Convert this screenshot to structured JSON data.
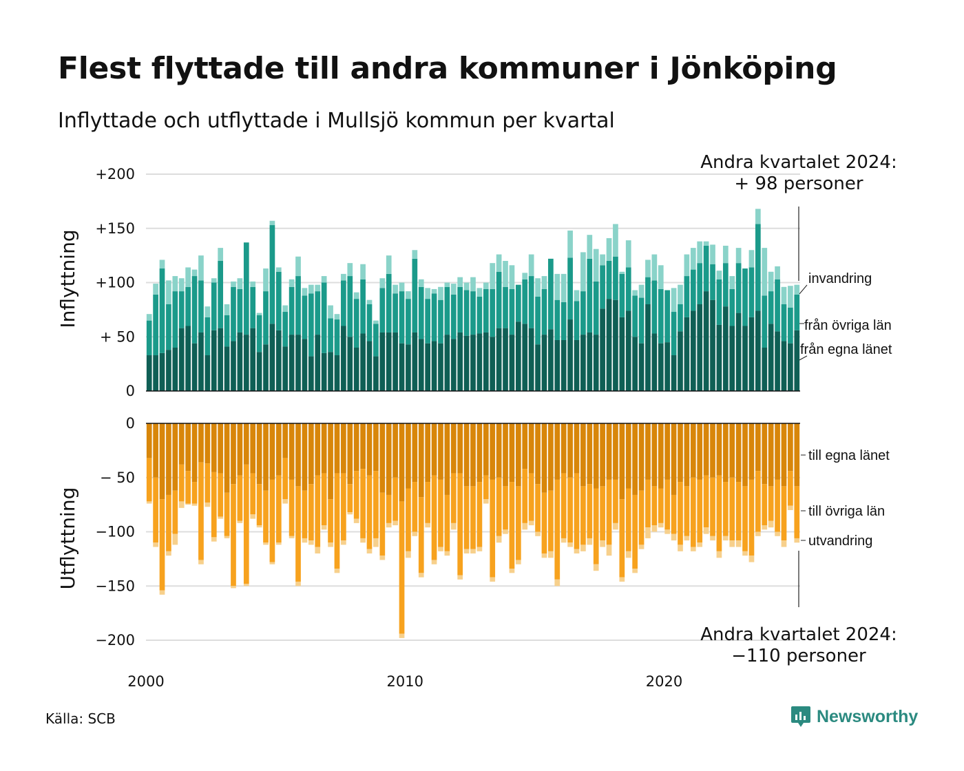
{
  "title": "Flest flyttade till andra kommuner i Jönköping",
  "subtitle": "Inflyttade och utflyttade i Mullsjö kommun per kvartal",
  "source": "Källa: SCB",
  "brand": "Newsworthy",
  "colors": {
    "in_egna": "#0f5f55",
    "in_ovriga": "#1b9a8a",
    "in_invandring": "#8ad3c9",
    "out_egna": "#d8860a",
    "out_ovriga": "#f7a21e",
    "out_utvandring": "#f7d08c",
    "brand": "#2b8a80",
    "grid": "#dddddd"
  },
  "chart_data": {
    "type": "bar",
    "stacked": true,
    "period": "quarter",
    "x_start": "2000-Q1",
    "x_ticks": [
      "2000",
      "2010",
      "2020"
    ],
    "panels": [
      {
        "name": "inflyttning",
        "ylabel": "Inflyttning",
        "ylim": [
          0,
          200
        ],
        "yticks": [
          "0",
          "+ 50",
          "+100",
          "+150",
          "+200"
        ],
        "series": [
          {
            "name": "från egna länet",
            "color": "#0f5f55",
            "values": [
              33,
              33,
              35,
              38,
              40,
              58,
              60,
              44,
              54,
              33,
              56,
              58,
              41,
              46,
              54,
              52,
              58,
              36,
              43,
              62,
              56,
              41,
              52,
              52,
              48,
              32,
              52,
              35,
              36,
              33,
              60,
              50,
              40,
              53,
              46,
              32,
              54,
              54,
              54,
              44,
              43,
              54,
              48,
              44,
              46,
              44,
              52,
              48,
              54,
              51,
              52,
              53,
              54,
              50,
              58,
              58,
              52,
              64,
              62,
              58,
              43,
              52,
              57,
              47,
              47,
              66,
              47,
              52,
              54,
              52,
              76,
              85,
              84,
              68,
              74,
              50,
              44,
              80,
              53,
              44,
              45,
              33,
              55,
              68,
              74,
              80,
              92,
              84,
              61,
              78,
              60,
              72,
              60,
              68,
              74,
              40,
              62,
              55,
              46,
              44,
              56
            ]
          },
          {
            "name": "från övriga län",
            "color": "#1b9a8a",
            "values": [
              32,
              56,
              78,
              42,
              52,
              34,
              36,
              62,
              48,
              35,
              44,
              62,
              29,
              50,
              40,
              85,
              38,
              34,
              49,
              91,
              54,
              32,
              44,
              54,
              40,
              58,
              40,
              65,
              31,
              33,
              42,
              56,
              45,
              50,
              34,
              30,
              41,
              54,
              36,
              48,
              42,
              68,
              48,
              41,
              44,
              40,
              44,
              41,
              42,
              42,
              40,
              34,
              40,
              44,
              52,
              38,
              42,
              34,
              41,
              48,
              44,
              42,
              65,
              37,
              35,
              57,
              36,
              40,
              68,
              49,
              40,
              35,
              40,
              40,
              40,
              38,
              42,
              25,
              49,
              50,
              48,
              40,
              25,
              38,
              38,
              38,
              42,
              33,
              42,
              40,
              34,
              46,
              53,
              46,
              80,
              48,
              30,
              48,
              34,
              33,
              33
            ]
          },
          {
            "name": "invandring",
            "color": "#8ad3c9",
            "values": [
              6,
              10,
              8,
              22,
              14,
              12,
              18,
              6,
              23,
              10,
              4,
              12,
              10,
              5,
              10,
              0,
              5,
              2,
              21,
              4,
              4,
              6,
              7,
              18,
              7,
              8,
              6,
              6,
              12,
              5,
              6,
              12,
              6,
              14,
              4,
              3,
              9,
              17,
              8,
              8,
              7,
              8,
              7,
              10,
              4,
              12,
              4,
              10,
              9,
              7,
              13,
              8,
              6,
              24,
              16,
              24,
              22,
              0,
              6,
              20,
              17,
              12,
              0,
              24,
              26,
              25,
              10,
              36,
              22,
              30,
              10,
              21,
              30,
              2,
              25,
              5,
              12,
              16,
              24,
              22,
              0,
              22,
              18,
              20,
              20,
              20,
              4,
              18,
              8,
              16,
              12,
              14,
              0,
              16,
              14,
              44,
              18,
              12,
              16,
              20,
              9
            ]
          }
        ]
      },
      {
        "name": "utflyttning",
        "ylabel": "Utflyttning",
        "ylim": [
          -200,
          0
        ],
        "yticks": [
          "0",
          "− 50",
          "−100",
          "−150",
          "−200"
        ],
        "series": [
          {
            "name": "till egna länet",
            "color": "#d8860a",
            "values": [
              -32,
              -50,
              -70,
              -66,
              -62,
              -38,
              -44,
              -54,
              -36,
              -37,
              -45,
              -46,
              -64,
              -56,
              -48,
              -38,
              -46,
              -56,
              -62,
              -52,
              -48,
              -32,
              -52,
              -58,
              -62,
              -56,
              -48,
              -46,
              -70,
              -46,
              -46,
              -56,
              -44,
              -42,
              -48,
              -44,
              -64,
              -66,
              -50,
              -72,
              -60,
              -54,
              -68,
              -54,
              -48,
              -52,
              -66,
              -46,
              -46,
              -58,
              -58,
              -54,
              -48,
              -52,
              -50,
              -58,
              -54,
              -58,
              -42,
              -46,
              -56,
              -64,
              -62,
              -52,
              -46,
              -50,
              -46,
              -58,
              -56,
              -60,
              -58,
              -52,
              -52,
              -70,
              -60,
              -66,
              -62,
              -52,
              -58,
              -60,
              -52,
              -66,
              -54,
              -58,
              -50,
              -52,
              -48,
              -50,
              -48,
              -54,
              -50,
              -54,
              -58,
              -52,
              -44,
              -56,
              -58,
              -52,
              -58,
              -44,
              -58
            ]
          },
          {
            "name": "till övriga län",
            "color": "#f7a21e",
            "values": [
              -40,
              -60,
              -84,
              -52,
              -40,
              -34,
              -30,
              -20,
              -90,
              -36,
              -60,
              -40,
              -40,
              -94,
              -42,
              -110,
              -38,
              -38,
              -48,
              -76,
              -62,
              -38,
              -52,
              -88,
              -44,
              -52,
              -66,
              -48,
              -40,
              -88,
              -62,
              -26,
              -44,
              -64,
              -68,
              -62,
              -58,
              -26,
              -40,
              -122,
              -58,
              -46,
              -70,
              -38,
              -78,
              -62,
              -52,
              -46,
              -94,
              -58,
              -58,
              -60,
              -22,
              -90,
              -54,
              -40,
              -80,
              -68,
              -50,
              -44,
              -44,
              -56,
              -56,
              -92,
              -60,
              -60,
              -70,
              -54,
              -50,
              -70,
              -50,
              -60,
              -40,
              -72,
              -58,
              -68,
              -50,
              -44,
              -36,
              -32,
              -46,
              -36,
              -58,
              -46,
              -64,
              -58,
              -48,
              -54,
              -70,
              -50,
              -58,
              -54,
              -60,
              -70,
              -56,
              -38,
              -32,
              -48,
              -50,
              -32,
              -48
            ]
          },
          {
            "name": "utvandring",
            "color": "#f7d08c",
            "values": [
              -2,
              -4,
              -4,
              -4,
              -10,
              -6,
              -1,
              -2,
              -4,
              -4,
              -4,
              -2,
              -2,
              -2,
              -2,
              -2,
              -4,
              -2,
              -2,
              -2,
              -2,
              -4,
              -2,
              -4,
              -4,
              -4,
              -6,
              -4,
              -4,
              -4,
              -4,
              -2,
              -4,
              -4,
              -4,
              -8,
              -4,
              -4,
              -4,
              -4,
              -6,
              -4,
              -4,
              -4,
              -4,
              -4,
              -4,
              -6,
              -4,
              -4,
              -4,
              -4,
              -4,
              -4,
              -6,
              -4,
              -4,
              -4,
              -6,
              -4,
              -4,
              -4,
              -6,
              -6,
              -4,
              -4,
              -4,
              -6,
              -6,
              -6,
              -6,
              -10,
              -6,
              -4,
              -6,
              -4,
              -4,
              -10,
              -6,
              -4,
              -4,
              -6,
              -6,
              -4,
              -4,
              -4,
              -6,
              -4,
              -6,
              -4,
              -6,
              -6,
              -4,
              -6,
              -4,
              -4,
              -6,
              -4,
              -6,
              -4,
              -4
            ]
          }
        ]
      }
    ],
    "annotations": [
      {
        "line1": "Andra kvartalet 2024:",
        "line2": "+ 98 personer"
      },
      {
        "line1": "Andra kvartalet 2024:",
        "line2": "−110 personer"
      }
    ]
  }
}
